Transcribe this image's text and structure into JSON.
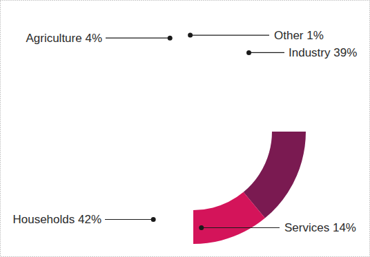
{
  "chart_data": {
    "type": "donut",
    "categories": [
      "Industry",
      "Services",
      "Households",
      "Agriculture",
      "Other"
    ],
    "values": [
      39,
      14,
      42,
      4,
      1
    ],
    "value_labels": [
      "39%",
      "14%",
      "42%",
      "4%",
      "1%"
    ],
    "colors": [
      "#7a1a51",
      "#d4145a",
      "#e05e2b",
      "#f7a823",
      "#b84c1c"
    ],
    "data_labels": true
  }
}
